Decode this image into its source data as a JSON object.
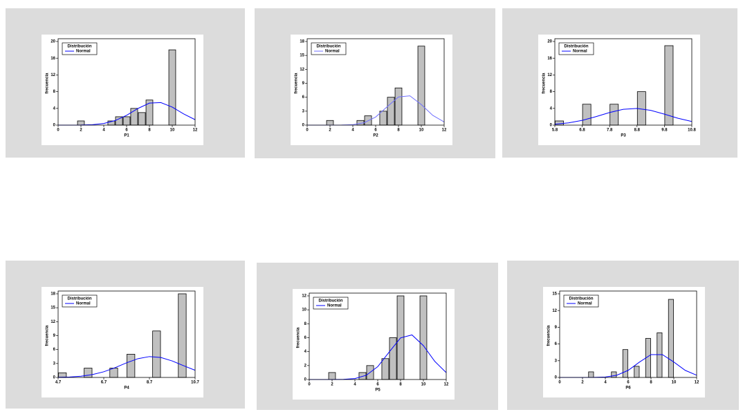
{
  "chart_data": [
    {
      "type": "histogram",
      "x_label": "P1",
      "y_label": "frecuencia",
      "legend_title": "Distribución",
      "color": "#c0c0c0",
      "bins": [
        1.67,
        2.33,
        3,
        3.67,
        4.33,
        5,
        5.67,
        6.33,
        7,
        7.67,
        8.33,
        9,
        9.67,
        10.33
      ],
      "values": [
        1,
        0,
        0,
        0,
        1,
        2,
        2,
        4,
        3,
        6,
        0,
        0,
        18
      ],
      "curve": {
        "name": "Normal",
        "color": "#0000ff",
        "x": [
          0,
          1,
          2,
          3,
          4,
          5,
          6,
          7,
          8,
          9,
          10,
          11,
          12
        ],
        "values": [
          0,
          0,
          0.02,
          0.11,
          0.39,
          1.09,
          2.35,
          3.99,
          5.26,
          5.39,
          4.31,
          2.68,
          1.3
        ]
      },
      "xlim": [
        0,
        12
      ],
      "xticks": [
        0,
        2,
        4,
        6,
        8,
        10,
        12
      ],
      "ylim": [
        0,
        20
      ],
      "yticks": [
        0,
        4,
        8,
        12,
        16,
        20
      ]
    },
    {
      "type": "histogram",
      "x_label": "P2",
      "y_label": "frecuencia",
      "legend_title": "Distribución",
      "color": "#c0c0c0",
      "bins": [
        1.67,
        2.33,
        3,
        3.67,
        4.33,
        5,
        5.67,
        6.33,
        7,
        7.67,
        8.33,
        9,
        9.67,
        10.33
      ],
      "values": [
        1,
        0,
        0,
        0,
        1,
        2,
        0,
        3,
        6,
        8,
        0,
        0,
        17
      ],
      "curve": {
        "name": "Normal",
        "color": "#6f6fff",
        "x": [
          0,
          1,
          2,
          3,
          4,
          5,
          6,
          7,
          8,
          9,
          10,
          11,
          12
        ],
        "values": [
          0,
          0,
          0,
          0.01,
          0.1,
          0.52,
          1.74,
          3.94,
          6.06,
          6.3,
          4.43,
          2.11,
          0.68
        ]
      },
      "xlim": [
        0,
        12
      ],
      "xticks": [
        0,
        2,
        4,
        6,
        8,
        10,
        12
      ],
      "ylim": [
        0,
        18
      ],
      "yticks": [
        0,
        3,
        6,
        9,
        12,
        15,
        18
      ]
    },
    {
      "type": "histogram",
      "x_label": "P3",
      "y_label": "frecuencia",
      "legend_title": "Distribución",
      "color": "#c0c0c0",
      "bins": [
        5.8,
        6.13,
        6.47,
        6.8,
        7.13,
        7.47,
        7.8,
        8.13,
        8.47,
        8.8,
        9.13,
        9.47,
        9.8,
        10.13,
        10.47,
        10.8
      ],
      "values": [
        1,
        0,
        0,
        5,
        0,
        0,
        5,
        0,
        0,
        8,
        0,
        0,
        19,
        0,
        0
      ],
      "curve": {
        "name": "Normal",
        "color": "#0000ff",
        "x": [
          5.8,
          6.3,
          6.8,
          7.3,
          7.8,
          8.3,
          8.8,
          9.3,
          9.8,
          10.3,
          10.8
        ],
        "values": [
          0.22,
          0.54,
          1.14,
          2.03,
          3.02,
          3.78,
          3.99,
          3.53,
          2.63,
          1.64,
          0.87
        ]
      },
      "xlim": [
        5.8,
        10.8
      ],
      "xticks": [
        5.8,
        6.8,
        7.8,
        8.8,
        9.8,
        10.8
      ],
      "ylim": [
        0,
        20
      ],
      "yticks": [
        0,
        4,
        8,
        12,
        16,
        20
      ]
    },
    {
      "type": "histogram",
      "x_label": "P4",
      "y_label": "frecuencia",
      "legend_title": "Distribución",
      "color": "#c0c0c0",
      "bins": [
        4.7,
        5.075,
        5.45,
        5.825,
        6.2,
        6.575,
        6.95,
        7.325,
        7.7,
        8.075,
        8.45,
        8.825,
        9.2,
        9.575,
        9.95,
        10.325,
        10.7
      ],
      "values": [
        1,
        0,
        0,
        2,
        0,
        0,
        2,
        0,
        5,
        0,
        0,
        10,
        0,
        0,
        18,
        0
      ],
      "curve": {
        "name": "Normal",
        "color": "#0000ff",
        "x": [
          4.7,
          5.2,
          5.7,
          6.2,
          6.7,
          7.2,
          7.7,
          8.2,
          8.7,
          9.2,
          9.7,
          10.2,
          10.7
        ],
        "values": [
          0.03,
          0.1,
          0.26,
          0.61,
          1.22,
          2.11,
          3.15,
          4.04,
          4.49,
          4.29,
          3.54,
          2.52,
          1.54
        ]
      },
      "xlim": [
        4.7,
        10.7
      ],
      "xticks": [
        4.7,
        6.7,
        8.7,
        10.7
      ],
      "ylim": [
        0,
        18
      ],
      "yticks": [
        0,
        3,
        6,
        9,
        12,
        15,
        18
      ]
    },
    {
      "type": "histogram",
      "x_label": "P5",
      "y_label": "frecuencia",
      "legend_title": "Distribución",
      "color": "#c0c0c0",
      "bins": [
        1.67,
        2.33,
        3,
        3.67,
        4.33,
        5,
        5.67,
        6.33,
        7,
        7.67,
        8.33,
        9,
        9.67,
        10.33
      ],
      "values": [
        1,
        0,
        0,
        0,
        1,
        2,
        0,
        3,
        6,
        12,
        0,
        0,
        12
      ],
      "curve": {
        "name": "Normal",
        "color": "#0000ff",
        "x": [
          0,
          1,
          2,
          3,
          4,
          5,
          6,
          7,
          8,
          9,
          10,
          11,
          12
        ],
        "values": [
          0,
          0,
          0,
          0.02,
          0.14,
          0.61,
          1.84,
          3.94,
          5.97,
          6.4,
          4.86,
          2.6,
          0.99
        ]
      },
      "xlim": [
        0,
        12
      ],
      "xticks": [
        0,
        2,
        4,
        6,
        8,
        10,
        12
      ],
      "ylim": [
        0,
        12
      ],
      "yticks": [
        0,
        2,
        4,
        6,
        8,
        10,
        12
      ]
    },
    {
      "type": "histogram",
      "x_label": "P6",
      "y_label": "frecuencia",
      "legend_title": "Distribución",
      "color": "#c0c0c0",
      "bins": [
        2.5,
        3,
        3.5,
        4,
        4.5,
        5,
        5.5,
        6,
        6.5,
        7,
        7.5,
        8,
        8.5,
        9,
        9.5,
        10,
        10.5
      ],
      "values": [
        1,
        0,
        0,
        0,
        1,
        0,
        5,
        0,
        2,
        0,
        7,
        0,
        8,
        0,
        14,
        0
      ],
      "curve": {
        "name": "Normal",
        "color": "#0000ff",
        "x": [
          0,
          1,
          2,
          3,
          4,
          5,
          6,
          7,
          8,
          9,
          10,
          11,
          12
        ],
        "values": [
          0,
          0,
          0,
          0.01,
          0.08,
          0.39,
          1.27,
          2.77,
          4.09,
          4.09,
          2.77,
          1.27,
          0.39
        ]
      },
      "xlim": [
        0,
        12
      ],
      "xticks": [
        0,
        2,
        4,
        6,
        8,
        10,
        12
      ],
      "ylim": [
        0,
        15
      ],
      "yticks": [
        0,
        3,
        6,
        9,
        12,
        15
      ]
    }
  ]
}
